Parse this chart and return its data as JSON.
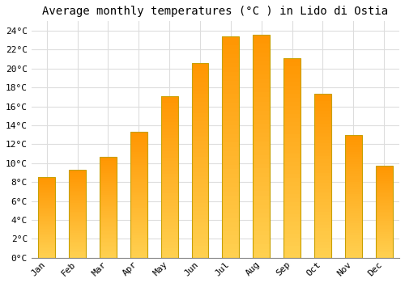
{
  "title": "Average monthly temperatures (°C ) in Lido di Ostia",
  "months": [
    "Jan",
    "Feb",
    "Mar",
    "Apr",
    "May",
    "Jun",
    "Jul",
    "Aug",
    "Sep",
    "Oct",
    "Nov",
    "Dec"
  ],
  "values": [
    8.5,
    9.3,
    10.7,
    13.3,
    17.1,
    20.6,
    23.4,
    23.6,
    21.1,
    17.3,
    13.0,
    9.7
  ],
  "bar_color_top": "#FFD966",
  "bar_color_bottom": "#FFA500",
  "bar_edge_color": "#C8A000",
  "background_color": "#FFFFFF",
  "plot_bg_color": "#FFFFFF",
  "grid_color": "#DDDDDD",
  "ylim": [
    0,
    25
  ],
  "yticks": [
    0,
    2,
    4,
    6,
    8,
    10,
    12,
    14,
    16,
    18,
    20,
    22,
    24
  ],
  "title_fontsize": 10,
  "tick_fontsize": 8,
  "font_family": "monospace",
  "bar_width": 0.55
}
